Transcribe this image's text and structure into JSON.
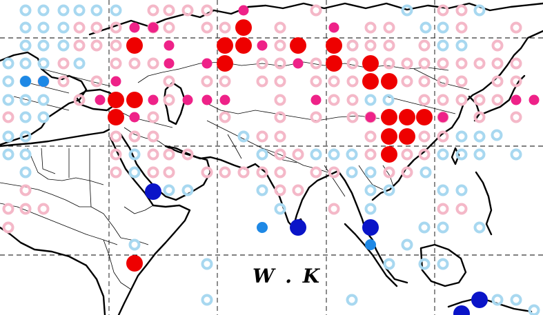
{
  "map": {
    "label": "W . K",
    "legend_classes": {
      "light-blue-ring": {
        "color": "#a8d8f0",
        "style": "ring"
      },
      "pink-ring": {
        "color": "#f4b8c8",
        "style": "ring"
      },
      "magenta-dot": {
        "color": "#ee2288",
        "style": "dot"
      },
      "red-dot": {
        "color": "#ee0000",
        "style": "dot"
      },
      "blue-dot": {
        "color": "#1e88e5",
        "style": "dot"
      },
      "dark-blue-dot": {
        "color": "#0a14c8",
        "style": "dot"
      }
    },
    "colors": {
      "light_blue": "#a8d8f0",
      "pink": "#f4b8c8",
      "magenta": "#ee2288",
      "red": "#ee0000",
      "blue": "#1e88e5",
      "dark_blue": "#0a14c8",
      "coastline": "#000000"
    }
  }
}
